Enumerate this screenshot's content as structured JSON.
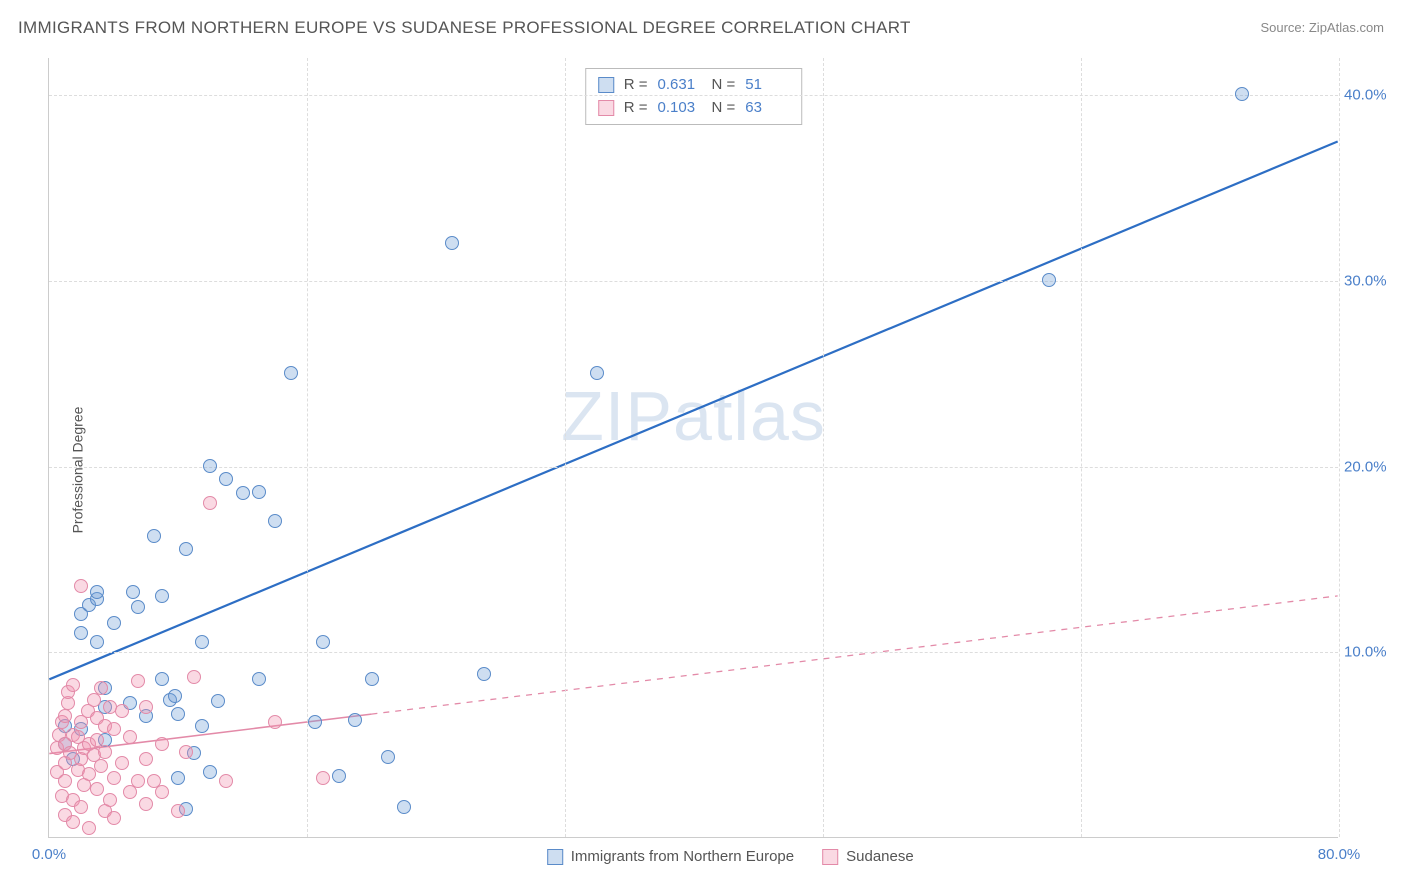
{
  "title": "IMMIGRANTS FROM NORTHERN EUROPE VS SUDANESE PROFESSIONAL DEGREE CORRELATION CHART",
  "source_label": "Source: ZipAtlas.com",
  "ylabel": "Professional Degree",
  "watermark": "ZIPatlas",
  "chart": {
    "type": "scatter",
    "background_color": "#ffffff",
    "grid_color": "#dddddd",
    "axis_color": "#cccccc",
    "xlim": [
      0,
      80
    ],
    "ylim": [
      0,
      42
    ],
    "xticks": [
      {
        "v": 0,
        "label": "0.0%"
      },
      {
        "v": 80,
        "label": "80.0%"
      }
    ],
    "xgrid_vals": [
      0,
      16,
      32,
      48,
      64,
      80
    ],
    "yticks": [
      {
        "v": 10,
        "label": "10.0%"
      },
      {
        "v": 20,
        "label": "20.0%"
      },
      {
        "v": 30,
        "label": "30.0%"
      },
      {
        "v": 40,
        "label": "40.0%"
      }
    ],
    "series": [
      {
        "key": "northern_europe",
        "label": "Immigrants from Northern Europe",
        "color_fill": "rgba(115,160,215,0.35)",
        "color_stroke": "#5a8bc9",
        "R": "0.631",
        "N": "51",
        "trend": {
          "x1": 0,
          "y1": 8.5,
          "x2": 80,
          "y2": 37.5,
          "stroke": "#2d6ec4",
          "width": 2.2,
          "dash": "none"
        },
        "points": [
          [
            1,
            5
          ],
          [
            1,
            6
          ],
          [
            1.5,
            4.2
          ],
          [
            2,
            5.8
          ],
          [
            2,
            11
          ],
          [
            2,
            12
          ],
          [
            2.5,
            12.5
          ],
          [
            3,
            10.5
          ],
          [
            3,
            12.8
          ],
          [
            3,
            13.2
          ],
          [
            3.5,
            5.2
          ],
          [
            3.5,
            7
          ],
          [
            3.5,
            8
          ],
          [
            4,
            11.5
          ],
          [
            5,
            7.2
          ],
          [
            5.2,
            13.2
          ],
          [
            5.5,
            12.4
          ],
          [
            6,
            6.5
          ],
          [
            6.5,
            16.2
          ],
          [
            7,
            13
          ],
          [
            7,
            8.5
          ],
          [
            7.5,
            7.4
          ],
          [
            7.8,
            7.6
          ],
          [
            8,
            6.6
          ],
          [
            8,
            3.2
          ],
          [
            8.5,
            15.5
          ],
          [
            8.5,
            1.5
          ],
          [
            9,
            4.5
          ],
          [
            9.5,
            6
          ],
          [
            9.5,
            10.5
          ],
          [
            10,
            20
          ],
          [
            10,
            3.5
          ],
          [
            10.5,
            7.3
          ],
          [
            11,
            19.3
          ],
          [
            12,
            18.5
          ],
          [
            13,
            18.6
          ],
          [
            13,
            8.5
          ],
          [
            14,
            17
          ],
          [
            15,
            25
          ],
          [
            16.5,
            6.2
          ],
          [
            17,
            10.5
          ],
          [
            18,
            3.3
          ],
          [
            19,
            6.3
          ],
          [
            20,
            8.5
          ],
          [
            21,
            4.3
          ],
          [
            22,
            1.6
          ],
          [
            25,
            32
          ],
          [
            27,
            8.8
          ],
          [
            34,
            25
          ],
          [
            62,
            30
          ],
          [
            74,
            40
          ]
        ]
      },
      {
        "key": "sudanese",
        "label": "Sudanese",
        "color_fill": "rgba(240,145,175,0.35)",
        "color_stroke": "#e38aa8",
        "R": "0.103",
        "N": "63",
        "trend": {
          "x1": 0,
          "y1": 4.5,
          "x2": 80,
          "y2": 13,
          "stroke": "#e38aa8",
          "width": 1.6,
          "dash": "solid_then_dash",
          "solid_until_x": 20
        },
        "points": [
          [
            0.5,
            3.5
          ],
          [
            0.5,
            4.8
          ],
          [
            0.6,
            5.5
          ],
          [
            0.8,
            2.2
          ],
          [
            0.8,
            6.2
          ],
          [
            1,
            1.2
          ],
          [
            1,
            3
          ],
          [
            1,
            4
          ],
          [
            1,
            5
          ],
          [
            1,
            6.5
          ],
          [
            1.2,
            7.2
          ],
          [
            1.2,
            7.8
          ],
          [
            1.3,
            4.5
          ],
          [
            1.5,
            0.8
          ],
          [
            1.5,
            2
          ],
          [
            1.5,
            5.5
          ],
          [
            1.5,
            8.2
          ],
          [
            1.8,
            3.6
          ],
          [
            1.8,
            5.4
          ],
          [
            2,
            1.6
          ],
          [
            2,
            4.2
          ],
          [
            2,
            6.2
          ],
          [
            2,
            13.5
          ],
          [
            2.2,
            2.8
          ],
          [
            2.2,
            4.8
          ],
          [
            2.4,
            6.8
          ],
          [
            2.5,
            0.5
          ],
          [
            2.5,
            3.4
          ],
          [
            2.5,
            5
          ],
          [
            2.8,
            4.4
          ],
          [
            2.8,
            7.4
          ],
          [
            3,
            2.6
          ],
          [
            3,
            5.2
          ],
          [
            3,
            6.4
          ],
          [
            3.2,
            3.8
          ],
          [
            3.2,
            8
          ],
          [
            3.5,
            1.4
          ],
          [
            3.5,
            4.6
          ],
          [
            3.5,
            6
          ],
          [
            3.8,
            2
          ],
          [
            3.8,
            7
          ],
          [
            4,
            1
          ],
          [
            4,
            3.2
          ],
          [
            4,
            5.8
          ],
          [
            4.5,
            4
          ],
          [
            4.5,
            6.8
          ],
          [
            5,
            2.4
          ],
          [
            5,
            5.4
          ],
          [
            5.5,
            3
          ],
          [
            5.5,
            8.4
          ],
          [
            6,
            1.8
          ],
          [
            6,
            4.2
          ],
          [
            6,
            7
          ],
          [
            6.5,
            3
          ],
          [
            7,
            2.4
          ],
          [
            7,
            5
          ],
          [
            8,
            1.4
          ],
          [
            8.5,
            4.6
          ],
          [
            9,
            8.6
          ],
          [
            10,
            18
          ],
          [
            11,
            3
          ],
          [
            14,
            6.2
          ],
          [
            17,
            3.2
          ]
        ]
      }
    ],
    "stats_box": {
      "rows": [
        {
          "swatch": "blue",
          "R_label": "R =",
          "R_val": "0.631",
          "N_label": "N =",
          "N_val": "51"
        },
        {
          "swatch": "pink",
          "R_label": "R =",
          "R_val": "0.103",
          "N_label": "N =",
          "N_val": "63"
        }
      ]
    },
    "legend_bottom": [
      {
        "swatch": "blue",
        "label": "Immigrants from Northern Europe"
      },
      {
        "swatch": "pink",
        "label": "Sudanese"
      }
    ]
  }
}
